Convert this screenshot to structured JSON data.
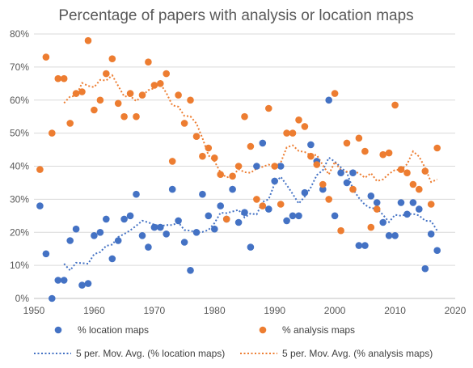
{
  "chart_data": {
    "type": "scatter",
    "title": "Percentage of papers with analysis or location maps",
    "xlabel": "",
    "ylabel": "",
    "xlim": [
      1950,
      2020
    ],
    "ylim": [
      0,
      80
    ],
    "x_ticks": [
      1950,
      1960,
      1970,
      1980,
      1990,
      2000,
      2010,
      2020
    ],
    "y_ticks": [
      0,
      10,
      20,
      30,
      40,
      50,
      60,
      70,
      80
    ],
    "y_tick_suffix": "%",
    "grid": "horizontal",
    "legend_position": "bottom",
    "series": [
      {
        "name": "% location maps",
        "kind": "points",
        "color": "#4472C4",
        "x": [
          1951,
          1952,
          1953,
          1954,
          1955,
          1956,
          1957,
          1958,
          1959,
          1960,
          1961,
          1962,
          1963,
          1964,
          1965,
          1966,
          1967,
          1968,
          1969,
          1970,
          1971,
          1972,
          1973,
          1974,
          1975,
          1976,
          1977,
          1978,
          1979,
          1980,
          1981,
          1982,
          1983,
          1984,
          1985,
          1986,
          1987,
          1988,
          1989,
          1990,
          1991,
          1992,
          1993,
          1994,
          1995,
          1996,
          1997,
          1998,
          1999,
          2000,
          2001,
          2002,
          2003,
          2004,
          2005,
          2006,
          2007,
          2008,
          2009,
          2010,
          2011,
          2012,
          2013,
          2014,
          2015,
          2016,
          2017
        ],
        "y": [
          28,
          13.5,
          0,
          5.5,
          5.5,
          17.5,
          21,
          4,
          4.5,
          19,
          20,
          24,
          12,
          17.5,
          24,
          25,
          31.5,
          19,
          15.5,
          21.5,
          21.5,
          19.5,
          33,
          23.5,
          17,
          8.5,
          20,
          31.5,
          25,
          21,
          28,
          24,
          33,
          23,
          26,
          15.5,
          40,
          47,
          27,
          35.5,
          40,
          23.5,
          25,
          25,
          32,
          46.5,
          41.5,
          33,
          60,
          25,
          38,
          35,
          38,
          16,
          16,
          31,
          29,
          23,
          19,
          19,
          29,
          25.5,
          29,
          27,
          9,
          19.5,
          14.5
        ]
      },
      {
        "name": "% analysis maps",
        "kind": "points",
        "color": "#ED7D31",
        "x": [
          1951,
          1952,
          1953,
          1954,
          1955,
          1956,
          1957,
          1958,
          1959,
          1960,
          1961,
          1962,
          1963,
          1964,
          1965,
          1966,
          1967,
          1968,
          1969,
          1970,
          1971,
          1972,
          1973,
          1974,
          1975,
          1976,
          1977,
          1978,
          1979,
          1980,
          1981,
          1982,
          1983,
          1984,
          1985,
          1986,
          1987,
          1988,
          1989,
          1990,
          1991,
          1992,
          1993,
          1994,
          1995,
          1996,
          1997,
          1998,
          1999,
          2000,
          2001,
          2002,
          2003,
          2004,
          2005,
          2006,
          2007,
          2008,
          2009,
          2010,
          2011,
          2012,
          2013,
          2014,
          2015,
          2016,
          2017
        ],
        "y": [
          39,
          73,
          50,
          66.5,
          66.5,
          53,
          62,
          62.5,
          78,
          57,
          60,
          68,
          72.5,
          59,
          55,
          62,
          55,
          61.5,
          71.5,
          64.5,
          65,
          68,
          41.5,
          61.5,
          53,
          60,
          49,
          43,
          45.5,
          42.5,
          37.5,
          24,
          37,
          40,
          55,
          46,
          30,
          28,
          57.5,
          40,
          28.5,
          50,
          50,
          54,
          52,
          43,
          40.5,
          34.5,
          30,
          62,
          20.5,
          47,
          33,
          48.5,
          44.5,
          21.5,
          27,
          43.5,
          44,
          58.5,
          39,
          38,
          34.5,
          33,
          38.5,
          28.5,
          45.5
        ]
      },
      {
        "name": "5 per. Mov. Avg. (% location maps)",
        "kind": "trendline",
        "color": "#4472C4",
        "x": [
          1955,
          1956,
          1957,
          1958,
          1959,
          1960,
          1961,
          1962,
          1963,
          1964,
          1965,
          1966,
          1967,
          1968,
          1969,
          1970,
          1971,
          1972,
          1973,
          1974,
          1975,
          1976,
          1977,
          1978,
          1979,
          1980,
          1981,
          1982,
          1983,
          1984,
          1985,
          1986,
          1987,
          1988,
          1989,
          1990,
          1991,
          1992,
          1993,
          1994,
          1995,
          1996,
          1997,
          1998,
          1999,
          2000,
          2001,
          2002,
          2003,
          2004,
          2005,
          2006,
          2007,
          2008,
          2009,
          2010,
          2011,
          2012,
          2013,
          2014,
          2015,
          2016,
          2017
        ],
        "y": [
          10.5,
          8.5,
          10.8,
          10.7,
          10.5,
          13.4,
          14,
          15.9,
          16.3,
          18.6,
          19.5,
          20.6,
          22,
          23.5,
          23,
          22.3,
          21.9,
          22.2,
          22.2,
          23,
          20.7,
          20.5,
          20,
          20.1,
          20.7,
          22.8,
          25.9,
          25.8,
          26.3,
          26.8,
          24.5,
          25.7,
          25.4,
          29.2,
          30,
          34.8,
          36.8,
          34.3,
          31.6,
          28.7,
          30.8,
          33.6,
          37.3,
          38.8,
          42.6,
          41.4,
          39.6,
          38.1,
          33.1,
          30.4,
          28.3,
          27.3,
          27.2,
          25.3,
          23.1,
          25.3,
          25,
          25.5,
          25.6,
          25.1,
          23.5,
          23.4,
          20.5
        ]
      },
      {
        "name": "5 per. Mov. Avg. (% analysis maps)",
        "kind": "trendline",
        "color": "#ED7D31",
        "x": [
          1955,
          1956,
          1957,
          1958,
          1959,
          1960,
          1961,
          1962,
          1963,
          1964,
          1965,
          1966,
          1967,
          1968,
          1969,
          1970,
          1971,
          1972,
          1973,
          1974,
          1975,
          1976,
          1977,
          1978,
          1979,
          1980,
          1981,
          1982,
          1983,
          1984,
          1985,
          1986,
          1987,
          1988,
          1989,
          1990,
          1991,
          1992,
          1993,
          1994,
          1995,
          1996,
          1997,
          1998,
          1999,
          2000,
          2001,
          2002,
          2003,
          2004,
          2005,
          2006,
          2007,
          2008,
          2009,
          2010,
          2011,
          2012,
          2013,
          2014,
          2015,
          2016,
          2017
        ],
        "y": [
          59.1,
          61.1,
          61.2,
          65.2,
          64.3,
          63.9,
          66.1,
          65.9,
          67.5,
          64.3,
          61.1,
          61.2,
          59.7,
          61.3,
          63,
          63.6,
          64.9,
          62.2,
          58.4,
          58,
          55.2,
          55.1,
          52.9,
          48.5,
          43.3,
          41.5,
          38.1,
          36.6,
          37.1,
          39.1,
          38.2,
          38,
          39.3,
          39.8,
          40.5,
          39.8,
          41.1,
          45.7,
          46.3,
          44.6,
          44.3,
          43.3,
          43.4,
          40.3,
          37.5,
          41.3,
          38.8,
          38.3,
          38.5,
          37.9,
          36.5,
          37.9,
          35.5,
          36,
          37.7,
          38.9,
          38.9,
          40.6,
          44.5,
          42.9,
          39.5,
          35.2,
          36
        ]
      }
    ]
  }
}
